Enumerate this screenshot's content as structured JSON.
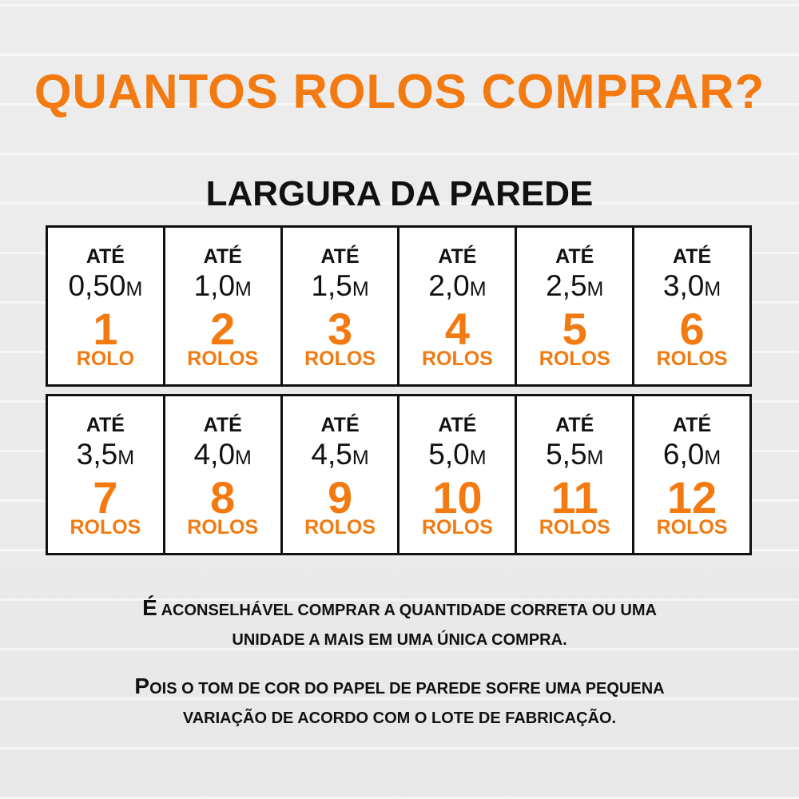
{
  "title": "QUANTOS ROLOS COMPRAR?",
  "subtitle": "LARGURA DA PAREDE",
  "colors": {
    "accent": "#f27a10",
    "text": "#111111",
    "background": "#ebebeb"
  },
  "rows": [
    [
      {
        "prefix": "ATÉ",
        "value": "0,50",
        "unit": "M",
        "count": "1",
        "label": "ROLO"
      },
      {
        "prefix": "ATÉ",
        "value": "1,0",
        "unit": "M",
        "count": "2",
        "label": "ROLOS"
      },
      {
        "prefix": "ATÉ",
        "value": "1,5",
        "unit": "M",
        "count": "3",
        "label": "ROLOS"
      },
      {
        "prefix": "ATÉ",
        "value": "2,0",
        "unit": "M",
        "count": "4",
        "label": "ROLOS"
      },
      {
        "prefix": "ATÉ",
        "value": "2,5",
        "unit": "M",
        "count": "5",
        "label": "ROLOS"
      },
      {
        "prefix": "ATÉ",
        "value": "3,0",
        "unit": "M",
        "count": "6",
        "label": "ROLOS"
      }
    ],
    [
      {
        "prefix": "ATÉ",
        "value": "3,5",
        "unit": "M",
        "count": "7",
        "label": "ROLOS"
      },
      {
        "prefix": "ATÉ",
        "value": "4,0",
        "unit": "M",
        "count": "8",
        "label": "ROLOS"
      },
      {
        "prefix": "ATÉ",
        "value": "4,5",
        "unit": "M",
        "count": "9",
        "label": "ROLOS"
      },
      {
        "prefix": "ATÉ",
        "value": "5,0",
        "unit": "M",
        "count": "10",
        "label": "ROLOS"
      },
      {
        "prefix": "ATÉ",
        "value": "5,5",
        "unit": "M",
        "count": "11",
        "label": "ROLOS"
      },
      {
        "prefix": "ATÉ",
        "value": "6,0",
        "unit": "M",
        "count": "12",
        "label": "ROLOS"
      }
    ]
  ],
  "notes": [
    [
      "É ACONSELHÁVEL COMPRAR A QUANTIDADE CORRETA OU UMA",
      "UNIDADE A MAIS EM UMA ÚNICA COMPRA."
    ],
    [
      "POIS O TOM DE COR DO PAPEL DE PAREDE SOFRE UMA PEQUENA",
      "VARIAÇÃO DE ACORDO COM O LOTE DE FABRICAÇÃO."
    ]
  ]
}
